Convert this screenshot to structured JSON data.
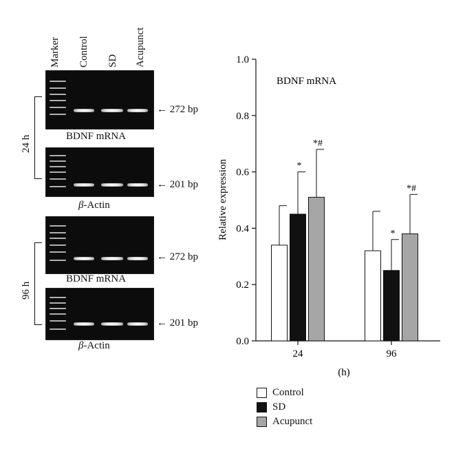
{
  "gel_panel": {
    "lanes": [
      "Marker",
      "Control",
      "SD",
      "Acupunct"
    ],
    "blots": [
      {
        "caption": "BDNF mRNA",
        "size": "272 bp"
      },
      {
        "caption_symbol": "β",
        "caption_rest": "-Actin",
        "size": "201 bp"
      },
      {
        "caption": "BDNF mRNA",
        "size": "272 bp"
      },
      {
        "caption_symbol": "β",
        "caption_rest": "-Actin",
        "size": "201 bp"
      }
    ],
    "times": [
      "24 h",
      "96 h"
    ],
    "arrow": "←"
  },
  "chart_data": {
    "type": "bar",
    "annotation": "BDNF mRNA",
    "xlabel": "(h)",
    "ylabel": "Relative expression",
    "categories": [
      "24",
      "96"
    ],
    "ylim": [
      0,
      1.0
    ],
    "yticks": [
      "0.0",
      "0.2",
      "0.4",
      "0.6",
      "0.8",
      "1.0"
    ],
    "series": [
      {
        "name": "Control",
        "color": "#ffffff",
        "values": [
          0.34,
          0.32
        ],
        "errors": [
          0.14,
          0.14
        ],
        "marks": [
          "",
          ""
        ]
      },
      {
        "name": "SD",
        "color": "#111111",
        "values": [
          0.45,
          0.25
        ],
        "errors": [
          0.15,
          0.11
        ],
        "marks": [
          "*",
          "*"
        ]
      },
      {
        "name": "Acupunct",
        "color": "#a6a6a6",
        "values": [
          0.51,
          0.38
        ],
        "errors": [
          0.17,
          0.14
        ],
        "marks": [
          "*#",
          "*#"
        ]
      }
    ],
    "legend_position": "bottom-left"
  }
}
